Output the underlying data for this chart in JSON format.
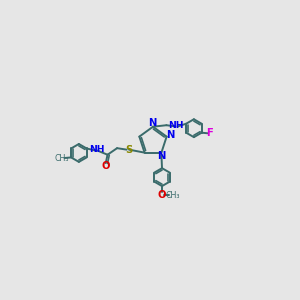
{
  "bg_color": "#e6e6e6",
  "bond_color": "#3a6b6b",
  "bond_width": 1.4,
  "N_color": "#0000ee",
  "O_color": "#dd0000",
  "S_color": "#888800",
  "F_color": "#dd00dd",
  "text_fontsize": 7.2,
  "fig_width": 3.0,
  "fig_height": 3.0,
  "dpi": 100,
  "xlim": [
    0.0,
    10.0
  ],
  "ylim": [
    1.5,
    8.5
  ]
}
